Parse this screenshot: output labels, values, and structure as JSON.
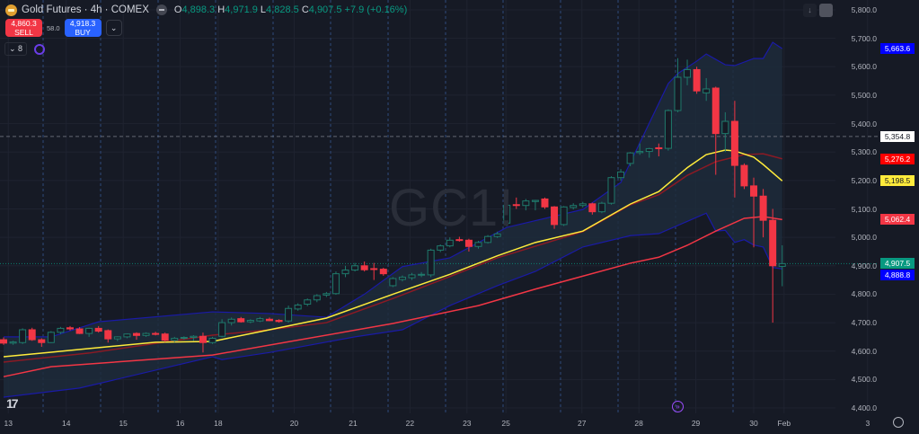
{
  "header": {
    "title": "Gold Futures · 4h · COMEX",
    "open_label": "O",
    "open": "4,898.3",
    "high_label": "H",
    "high": "4,971.9",
    "low_label": "L",
    "low": "4,828.5",
    "close_label": "C",
    "close": "4,907.5",
    "change": "+7.9 (+0.16%)"
  },
  "trade": {
    "sell_price": "4,860.3",
    "sell_label": "SELL",
    "spread": "58.0",
    "buy_price": "4,918.3",
    "buy_label": "BUY",
    "dropdown_icon": "chevron-down-icon"
  },
  "indicators": {
    "count": "8",
    "collapse_icon": "chevron-down-icon"
  },
  "watermark": "GC1!",
  "colors": {
    "bg": "#161a25",
    "up": "#1f7a6c",
    "down": "#f23645",
    "ema_fast": "#ffeb3b",
    "ema_slow": "#8b1a24",
    "sma": "#f23645",
    "band": "#1a1aa6",
    "band_fill": "#1d2b3b"
  },
  "y_axis": {
    "ticks": [
      "5,800.0",
      "5,700.0",
      "5,600.0",
      "5,500.0",
      "5,400.0",
      "5,300.0",
      "5,200.0",
      "5,100.0",
      "5,000.0",
      "4,900.0",
      "4,800.0",
      "4,700.0",
      "4,600.0",
      "4,500.0",
      "4,400.0"
    ],
    "tick_values": [
      5800,
      5700,
      5600,
      5500,
      5400,
      5300,
      5200,
      5100,
      5000,
      4900,
      4800,
      4700,
      4600,
      4500,
      4400
    ]
  },
  "price_tags": [
    {
      "label": "5,663.6",
      "value": 5663.6,
      "bg": "#0000ff",
      "fg": "#ffffff"
    },
    {
      "label": "5,354.8",
      "value": 5354.8,
      "bg": "#ffffff",
      "fg": "#131722"
    },
    {
      "label": "5,276.2",
      "value": 5276.2,
      "bg": "#ff0000",
      "fg": "#ffffff"
    },
    {
      "label": "5,198.5",
      "value": 5198.5,
      "bg": "#ffeb3b",
      "fg": "#131722"
    },
    {
      "label": "5,062.4",
      "value": 5062.4,
      "bg": "#f23645",
      "fg": "#ffffff"
    },
    {
      "label": "4,907.5",
      "value": 4907.5,
      "bg": "#089981",
      "fg": "#ffffff"
    },
    {
      "label": "4,888.8",
      "value": 4888.8,
      "bg": "#0000ff",
      "fg": "#ffffff"
    }
  ],
  "x_axis": [
    {
      "label": "13",
      "bar": 0.5
    },
    {
      "label": "14",
      "bar": 6.6
    },
    {
      "label": "15",
      "bar": 12.6
    },
    {
      "label": "16",
      "bar": 18.6
    },
    {
      "label": "18",
      "bar": 22.6
    },
    {
      "label": "20",
      "bar": 30.6
    },
    {
      "label": "21",
      "bar": 36.8
    },
    {
      "label": "22",
      "bar": 42.8
    },
    {
      "label": "23",
      "bar": 48.8
    },
    {
      "label": "25",
      "bar": 52.9
    },
    {
      "label": "27",
      "bar": 60.9
    },
    {
      "label": "28",
      "bar": 66.9
    },
    {
      "label": "29",
      "bar": 72.9
    },
    {
      "label": "30",
      "bar": 79.0
    },
    {
      "label": "Feb",
      "bar": 82.2
    },
    {
      "label": "3",
      "bar": 91.0
    }
  ],
  "chart_data": {
    "type": "candlestick",
    "symbol": "GC1!",
    "interval": "4h",
    "ylim": [
      4380,
      5830
    ],
    "candles": [
      [
        4640,
        4648,
        4622,
        4628
      ],
      [
        4628,
        4636,
        4622,
        4632
      ],
      [
        4630,
        4680,
        4625,
        4675
      ],
      [
        4675,
        4682,
        4636,
        4640
      ],
      [
        4640,
        4645,
        4615,
        4630
      ],
      [
        4630,
        4670,
        4628,
        4666
      ],
      [
        4666,
        4685,
        4660,
        4680
      ],
      [
        4682,
        4688,
        4672,
        4678
      ],
      [
        4678,
        4684,
        4660,
        4662
      ],
      [
        4662,
        4682,
        4650,
        4680
      ],
      [
        4680,
        4688,
        4665,
        4670
      ],
      [
        4672,
        4676,
        4630,
        4643
      ],
      [
        4643,
        4652,
        4635,
        4650
      ],
      [
        4650,
        4662,
        4645,
        4660
      ],
      [
        4662,
        4666,
        4640,
        4655
      ],
      [
        4655,
        4666,
        4650,
        4662
      ],
      [
        4662,
        4668,
        4655,
        4660
      ],
      [
        4660,
        4665,
        4632,
        4638
      ],
      [
        4638,
        4650,
        4632,
        4645
      ],
      [
        4645,
        4652,
        4640,
        4648
      ],
      [
        4648,
        4656,
        4636,
        4652
      ],
      [
        4652,
        4665,
        4595,
        4630
      ],
      [
        4630,
        4650,
        4625,
        4645
      ],
      [
        4652,
        4712,
        4648,
        4700
      ],
      [
        4700,
        4718,
        4690,
        4712
      ],
      [
        4714,
        4720,
        4700,
        4703
      ],
      [
        4703,
        4712,
        4698,
        4708
      ],
      [
        4706,
        4720,
        4702,
        4714
      ],
      [
        4712,
        4718,
        4705,
        4707
      ],
      [
        4708,
        4712,
        4700,
        4704
      ],
      [
        4706,
        4760,
        4700,
        4750
      ],
      [
        4748,
        4768,
        4742,
        4762
      ],
      [
        4765,
        4785,
        4758,
        4780
      ],
      [
        4780,
        4800,
        4772,
        4795
      ],
      [
        4797,
        4808,
        4790,
        4802
      ],
      [
        4802,
        4880,
        4798,
        4872
      ],
      [
        4872,
        4900,
        4860,
        4885
      ],
      [
        4885,
        4910,
        4880,
        4900
      ],
      [
        4900,
        4915,
        4880,
        4886
      ],
      [
        4890,
        4910,
        4850,
        4888
      ],
      [
        4888,
        4893,
        4865,
        4872
      ],
      [
        4830,
        4860,
        4825,
        4855
      ],
      [
        4852,
        4866,
        4845,
        4860
      ],
      [
        4858,
        4875,
        4850,
        4868
      ],
      [
        4868,
        4878,
        4860,
        4870
      ],
      [
        4868,
        4960,
        4860,
        4955
      ],
      [
        4955,
        4975,
        4948,
        4970
      ],
      [
        4970,
        5000,
        4965,
        4990
      ],
      [
        4992,
        5002,
        4985,
        4990
      ],
      [
        4990,
        4995,
        4950,
        4968
      ],
      [
        4968,
        4988,
        4960,
        4982
      ],
      [
        4982,
        5008,
        4978,
        5003
      ],
      [
        5003,
        5020,
        4998,
        5012
      ],
      [
        5050,
        5120,
        5040,
        5113
      ],
      [
        5115,
        5140,
        5100,
        5112
      ],
      [
        5112,
        5135,
        5095,
        5128
      ],
      [
        5126,
        5132,
        5095,
        5130
      ],
      [
        5135,
        5140,
        5100,
        5107
      ],
      [
        5107,
        5110,
        5030,
        5045
      ],
      [
        5045,
        5110,
        5040,
        5107
      ],
      [
        5105,
        5120,
        5098,
        5112
      ],
      [
        5112,
        5125,
        5105,
        5118
      ],
      [
        5118,
        5122,
        5080,
        5090
      ],
      [
        5090,
        5125,
        5085,
        5120
      ],
      [
        5120,
        5215,
        5115,
        5210
      ],
      [
        5210,
        5240,
        5200,
        5230
      ],
      [
        5260,
        5300,
        5250,
        5297
      ],
      [
        5298,
        5330,
        5290,
        5302
      ],
      [
        5302,
        5315,
        5280,
        5312
      ],
      [
        5315,
        5330,
        5285,
        5313
      ],
      [
        5313,
        5450,
        5305,
        5446
      ],
      [
        5446,
        5630,
        5440,
        5563
      ],
      [
        5563,
        5625,
        5535,
        5590
      ],
      [
        5590,
        5600,
        5505,
        5515
      ],
      [
        5508,
        5560,
        5480,
        5522
      ],
      [
        5525,
        5530,
        5220,
        5365
      ],
      [
        5365,
        5440,
        5300,
        5408
      ],
      [
        5408,
        5480,
        5140,
        5253
      ],
      [
        5253,
        5260,
        5170,
        5181
      ],
      [
        5181,
        5210,
        4965,
        5145
      ],
      [
        5145,
        5170,
        5000,
        5060
      ],
      [
        5060,
        5100,
        4700,
        4900
      ],
      [
        4898,
        4972,
        4828,
        4907.5
      ]
    ],
    "series": [
      {
        "name": "upper-band",
        "color": "#1a1aa6",
        "points": [
          [
            0,
            4650
          ],
          [
            5,
            4650
          ],
          [
            10,
            4703
          ],
          [
            22,
            4738
          ],
          [
            28,
            4732
          ],
          [
            34,
            4719
          ],
          [
            38,
            4800
          ],
          [
            42,
            4897
          ],
          [
            47,
            4928
          ],
          [
            53,
            5035
          ],
          [
            61,
            5098
          ],
          [
            65,
            5193
          ],
          [
            70,
            5541
          ],
          [
            71,
            5576
          ],
          [
            73,
            5620
          ],
          [
            74,
            5645
          ],
          [
            76,
            5607
          ],
          [
            77,
            5604
          ],
          [
            79,
            5629
          ],
          [
            80,
            5629
          ],
          [
            81,
            5686
          ],
          [
            82,
            5663.6
          ]
        ]
      },
      {
        "name": "lower-band",
        "color": "#1a1aa6",
        "points": [
          [
            0,
            4438
          ],
          [
            8,
            4470
          ],
          [
            22,
            4580
          ],
          [
            23,
            4570
          ],
          [
            28,
            4595
          ],
          [
            37,
            4650
          ],
          [
            42,
            4675
          ],
          [
            47,
            4760
          ],
          [
            52,
            4830
          ],
          [
            56,
            4880
          ],
          [
            61,
            4966
          ],
          [
            66,
            5006
          ],
          [
            69,
            5013
          ],
          [
            74,
            5085
          ],
          [
            75,
            5022
          ],
          [
            76,
            5025
          ],
          [
            77,
            4982
          ],
          [
            78,
            4992
          ],
          [
            79,
            4973
          ],
          [
            80,
            4966
          ],
          [
            81,
            4894
          ],
          [
            82,
            4888.8
          ]
        ]
      },
      {
        "name": "sma",
        "color": "#f23645",
        "points": [
          [
            0,
            4510
          ],
          [
            5,
            4545
          ],
          [
            22,
            4586
          ],
          [
            41,
            4697
          ],
          [
            50,
            4760
          ],
          [
            56,
            4818
          ],
          [
            66,
            4909
          ],
          [
            69,
            4930
          ],
          [
            72,
            4972
          ],
          [
            75,
            5022
          ],
          [
            78,
            5067
          ],
          [
            80,
            5073
          ],
          [
            82,
            5062.4
          ]
        ]
      },
      {
        "name": "ema-slow",
        "color": "#8b1a24",
        "points": [
          [
            0,
            4561
          ],
          [
            9,
            4593
          ],
          [
            22,
            4656
          ],
          [
            28,
            4675
          ],
          [
            34,
            4700
          ],
          [
            41,
            4785
          ],
          [
            47,
            4862
          ],
          [
            52,
            4928
          ],
          [
            61,
            5020
          ],
          [
            66,
            5114
          ],
          [
            69,
            5150
          ],
          [
            72,
            5218
          ],
          [
            75,
            5266
          ],
          [
            78,
            5291
          ],
          [
            80,
            5294
          ],
          [
            82,
            5276.2
          ]
        ]
      },
      {
        "name": "ema-fast",
        "color": "#ffeb3b",
        "points": [
          [
            0,
            4580
          ],
          [
            5,
            4596
          ],
          [
            9,
            4609
          ],
          [
            16,
            4631
          ],
          [
            22,
            4634
          ],
          [
            28,
            4675
          ],
          [
            34,
            4716
          ],
          [
            41,
            4800
          ],
          [
            47,
            4870
          ],
          [
            52,
            4935
          ],
          [
            56,
            4982
          ],
          [
            61,
            5022
          ],
          [
            66,
            5117
          ],
          [
            69,
            5161
          ],
          [
            72,
            5245
          ],
          [
            74,
            5291
          ],
          [
            76,
            5307
          ],
          [
            77,
            5304
          ],
          [
            79,
            5282
          ],
          [
            80,
            5256
          ],
          [
            82,
            5198.5
          ]
        ]
      }
    ],
    "reference_lines": [
      {
        "value": 5354.8,
        "style": "dashed",
        "color": "#787b86"
      },
      {
        "value": 4907.5,
        "style": "dotted",
        "color": "#089981"
      }
    ]
  }
}
